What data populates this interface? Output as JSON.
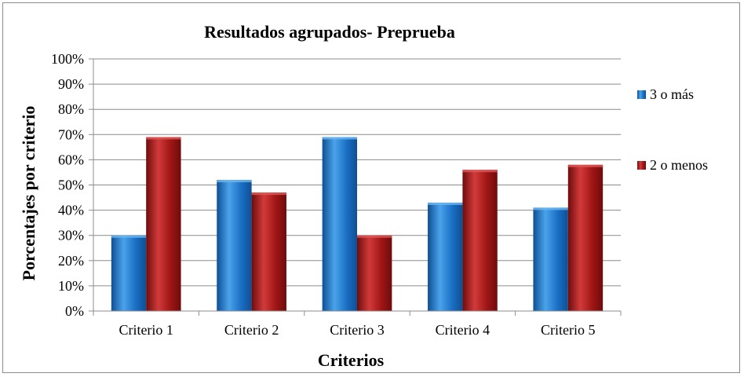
{
  "chart_data": {
    "type": "bar",
    "title": "Resultados agrupados- Preprueba",
    "xlabel": "Criterios",
    "ylabel": "Porcentajes por criterio",
    "categories": [
      "Criterio 1",
      "Criterio 2",
      "Criterio 3",
      "Criterio 4",
      "Criterio 5"
    ],
    "series": [
      {
        "name": "3 o más",
        "color": "#1a6fc4",
        "values": [
          30,
          52,
          69,
          43,
          41
        ]
      },
      {
        "name": "2 o menos",
        "color": "#a01515",
        "values": [
          69,
          47,
          30,
          56,
          58
        ]
      }
    ],
    "ylim": [
      0,
      100
    ],
    "yticks": [
      "0%",
      "10%",
      "20%",
      "30%",
      "40%",
      "50%",
      "60%",
      "70%",
      "80%",
      "90%",
      "100%"
    ],
    "grid": true,
    "legend_position": "right"
  }
}
